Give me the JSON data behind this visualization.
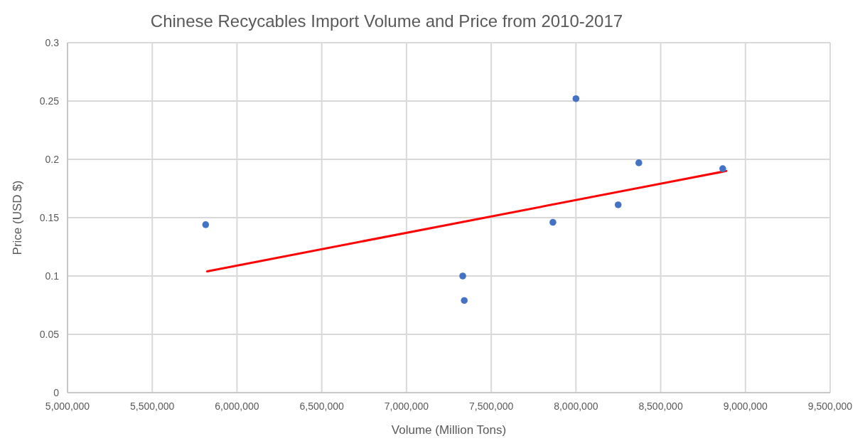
{
  "chart_data": {
    "type": "scatter",
    "title": "Chinese Recycables Import Volume and Price from 2010-2017",
    "xlabel": "Volume (Million Tons)",
    "ylabel": "Price (USD $)",
    "series": [
      {
        "color": "#4472c4",
        "marker": "circle",
        "x": [
          5815000,
          7332000,
          7341000,
          7864000,
          8000000,
          8249000,
          8371000,
          8866000
        ],
        "values": [
          0.144,
          0.1,
          0.079,
          0.146,
          0.252,
          0.161,
          0.197,
          0.192
        ]
      },
      {
        "type": "line",
        "color": "#ff0000",
        "line_style": "solid",
        "x": [
          5824000,
          8887000
        ],
        "values": [
          0.104,
          0.19
        ]
      }
    ],
    "xlim": [
      5000000,
      9500000
    ],
    "xticks": [
      {
        "value": 5000000,
        "label": "5,000,000"
      },
      {
        "value": 5500000,
        "label": "5,500,000"
      },
      {
        "value": 6000000,
        "label": "6,000,000"
      },
      {
        "value": 6500000,
        "label": "6,500,000"
      },
      {
        "value": 7000000,
        "label": "7,000,000"
      },
      {
        "value": 7500000,
        "label": "7,500,000"
      },
      {
        "value": 8000000,
        "label": "8,000,000"
      },
      {
        "value": 8500000,
        "label": "8,500,000"
      },
      {
        "value": 9000000,
        "label": "9,000,000"
      },
      {
        "value": 9500000,
        "label": "9,500,000"
      }
    ],
    "ylim": [
      0,
      0.3
    ],
    "yticks": [
      0,
      0.05,
      0.1,
      0.15,
      0.2,
      0.25,
      0.3
    ],
    "grid": true
  }
}
